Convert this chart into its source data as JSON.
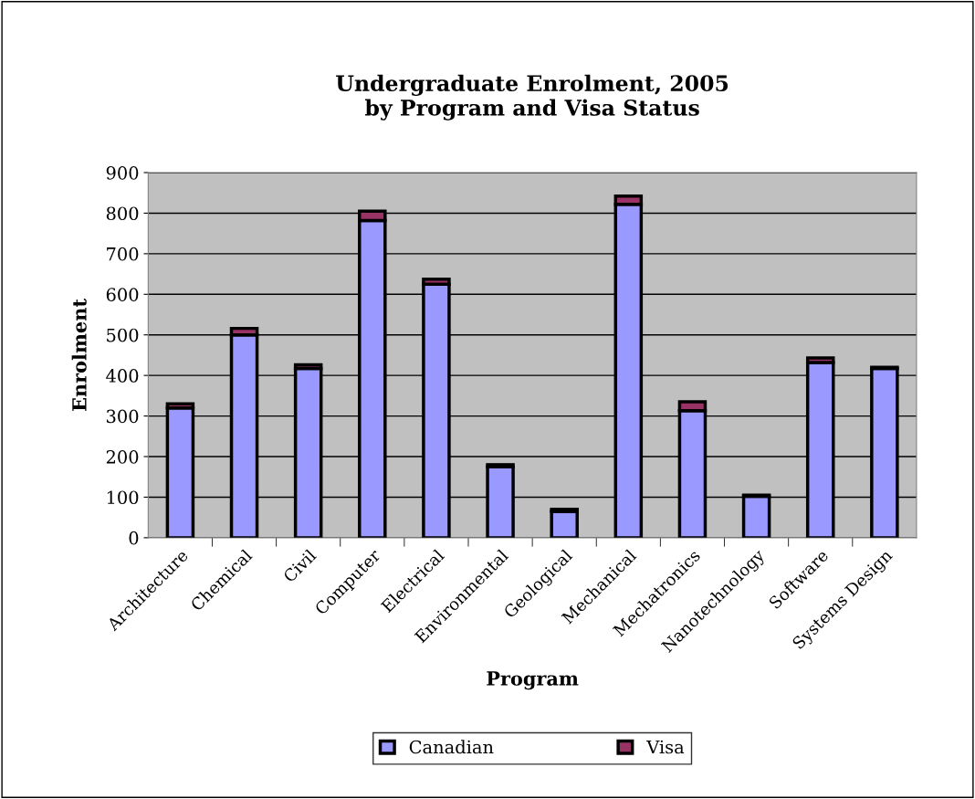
{
  "chart_data": {
    "type": "bar",
    "title": "Undergraduate Enrolment, 2005\nby Program and Visa Status",
    "xlabel": "Program",
    "ylabel": "Enrolment",
    "categories": [
      "Architecture",
      "Chemical",
      "Civil",
      "Computer",
      "Electrical",
      "Environmental",
      "Geological",
      "Mechanical",
      "Mechatronics",
      "Nanotechnology",
      "Software",
      "Systems Design"
    ],
    "stacked": true,
    "series": [
      {
        "name": "Canadian",
        "color": "#9999ff",
        "values": [
          320,
          500,
          417,
          782,
          625,
          175,
          65,
          822,
          313,
          102,
          432,
          417
        ]
      },
      {
        "name": "Visa",
        "color": "#993366",
        "values": [
          10,
          16,
          9,
          23,
          12,
          5,
          5,
          20,
          22,
          3,
          11,
          3
        ]
      }
    ],
    "ylim": [
      0,
      900
    ],
    "yticks": [
      0,
      100,
      200,
      300,
      400,
      500,
      600,
      700,
      800,
      900
    ],
    "grid": "y",
    "legend": "bottom"
  }
}
